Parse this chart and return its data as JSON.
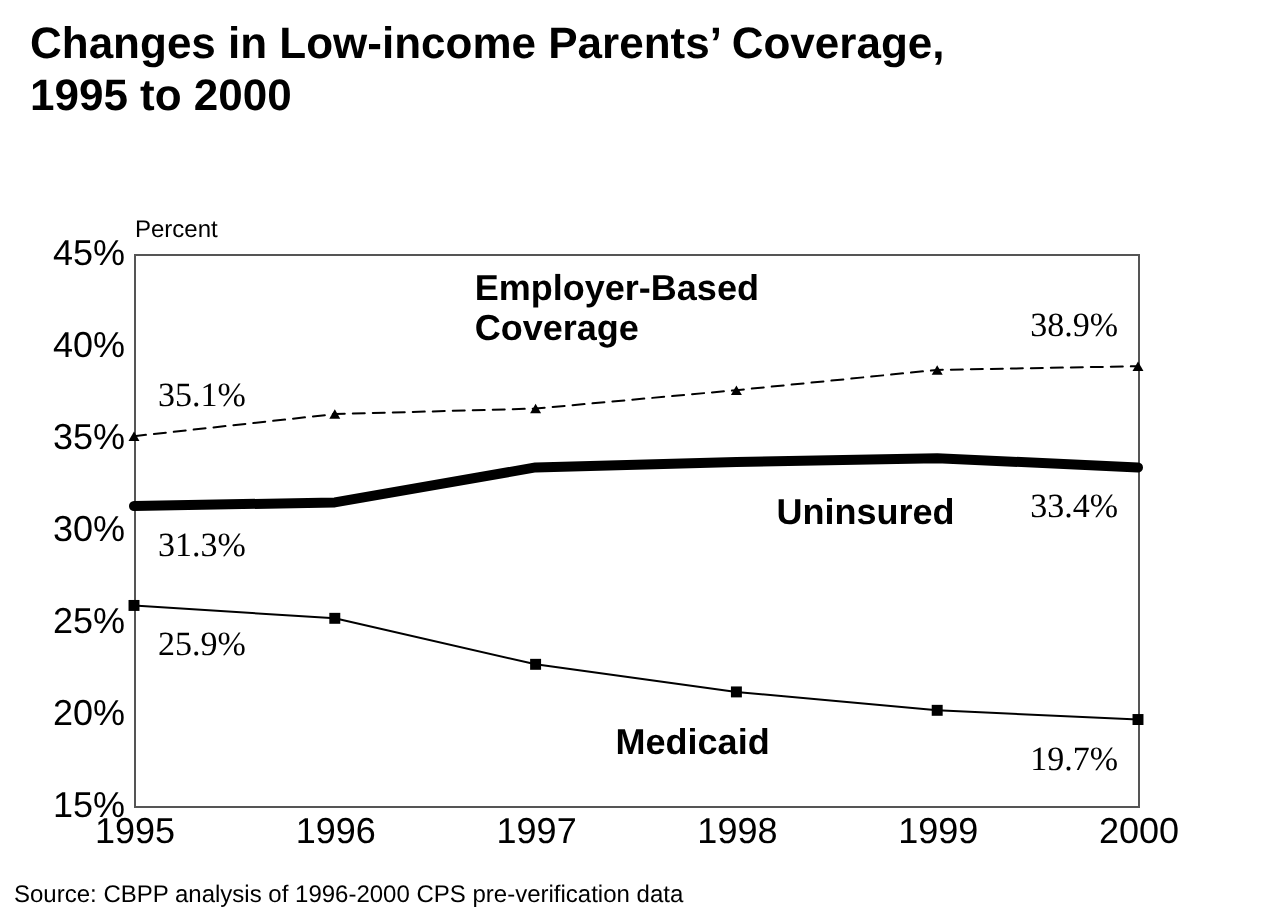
{
  "chart_data": {
    "type": "line",
    "title": "Changes in Low-income Parents’ Coverage, 1995 to 2000",
    "ylabel": "Percent",
    "categories": [
      "1995",
      "1996",
      "1997",
      "1998",
      "1999",
      "2000"
    ],
    "series": [
      {
        "name": "Employer-Based Coverage",
        "color": "#000000",
        "marker": "triangle",
        "line_style": "dashed",
        "values": [
          35.1,
          36.3,
          36.6,
          37.6,
          38.7,
          38.9
        ],
        "value_labels": [
          "35.1%",
          null,
          null,
          null,
          null,
          "38.9%"
        ]
      },
      {
        "name": "Uninsured",
        "color": "#000000",
        "marker": "none",
        "line_style": "solid",
        "values": [
          31.3,
          31.5,
          33.4,
          33.7,
          33.9,
          33.4
        ],
        "value_labels": [
          "31.3%",
          null,
          null,
          null,
          null,
          "33.4%"
        ]
      },
      {
        "name": "Medicaid",
        "color": "#000000",
        "marker": "square",
        "line_style": "solid",
        "values": [
          25.9,
          25.2,
          22.7,
          21.2,
          20.2,
          19.7
        ],
        "value_labels": [
          "25.9%",
          null,
          null,
          null,
          null,
          "19.7%"
        ]
      }
    ],
    "ylim": [
      15,
      45
    ],
    "yticks": [
      {
        "value": 15,
        "label": "15%"
      },
      {
        "value": 20,
        "label": "20%"
      },
      {
        "value": 25,
        "label": "25%"
      },
      {
        "value": 30,
        "label": "30%"
      },
      {
        "value": 35,
        "label": "35%"
      },
      {
        "value": 40,
        "label": "40%"
      },
      {
        "value": 45,
        "label": "45%"
      }
    ],
    "annotations": [
      "Source: CBPP analysis of 1996-2000 CPS pre-verification data"
    ]
  }
}
